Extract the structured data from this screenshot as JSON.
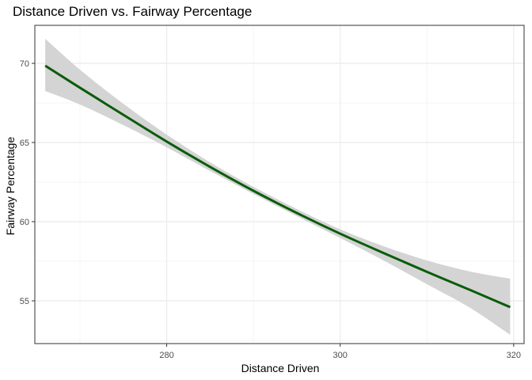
{
  "chart_data": {
    "type": "line",
    "title": "Distance Driven vs. Fairway Percentage",
    "xlabel": "Distance Driven",
    "ylabel": "Fairway Percentage",
    "xlim": [
      264.8,
      321.2
    ],
    "ylim": [
      52.3,
      72.4
    ],
    "x_ticks": [
      280,
      300,
      320
    ],
    "y_ticks": [
      55,
      60,
      65,
      70
    ],
    "grid": true,
    "legend": "none",
    "series": [
      {
        "x": [
          266.0,
          270.0,
          275.0,
          280.0,
          285.0,
          290.0,
          295.0,
          300.0,
          305.0,
          310.0,
          315.0,
          319.6
        ],
        "values": [
          69.85,
          68.46,
          66.75,
          65.06,
          63.46,
          61.95,
          60.55,
          59.24,
          58.02,
          56.83,
          55.68,
          54.6
        ],
        "lower": [
          68.25,
          67.4,
          66.1,
          64.7,
          63.2,
          61.75,
          60.35,
          58.97,
          57.55,
          56.05,
          54.55,
          52.85
        ],
        "upper": [
          71.55,
          69.6,
          67.45,
          65.5,
          63.75,
          62.2,
          60.8,
          59.52,
          58.45,
          57.55,
          56.85,
          56.4
        ]
      }
    ],
    "colors": {
      "line": "#0a5c0a",
      "ribbon": "#d2d2d2",
      "grid_major": "#ebebeb",
      "grid_minor": "#f4f4f4",
      "panel_border": "#333333"
    }
  }
}
